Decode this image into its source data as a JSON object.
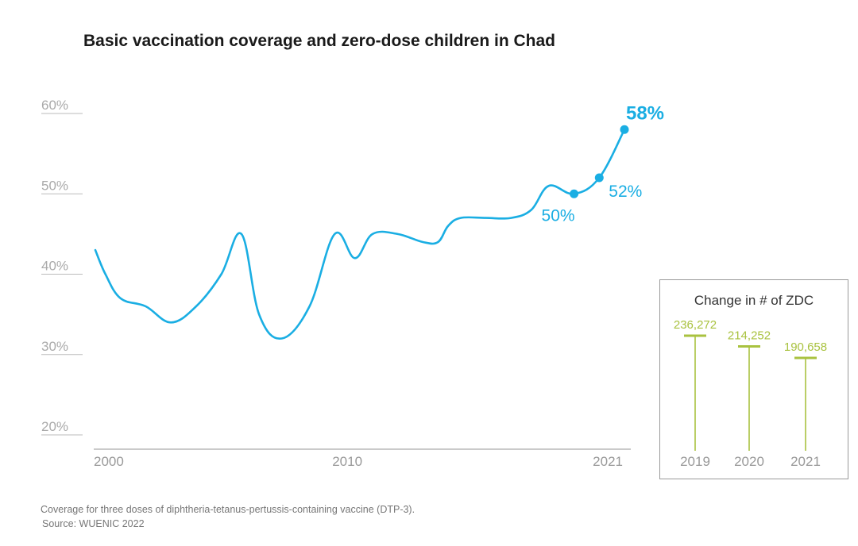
{
  "title": "Basic vaccination coverage and zero-dose children in Chad",
  "footnote": {
    "line1": "Coverage for three doses of diphtheria-tetanus-pertussis-containing vaccine (DTP-3).",
    "line2": "Source: WUENIC 2022"
  },
  "colors": {
    "line": "#1aaee3",
    "zdc": "#a9c23f",
    "axis": "#999999"
  },
  "chart_data": [
    {
      "type": "line",
      "title": "Basic vaccination coverage and zero-dose children in Chad",
      "xlabel": "",
      "ylabel": "",
      "xlim": [
        2000,
        2021
      ],
      "ylim": [
        20,
        60
      ],
      "y_ticks": [
        "60%",
        "50%",
        "40%",
        "30%",
        "20%"
      ],
      "x_ticks": [
        "2000",
        "2010",
        "2021"
      ],
      "grid": false,
      "series": [
        {
          "x": [
            2000,
            2000.4,
            2001,
            2002,
            2003,
            2004,
            2005,
            2005.8,
            2006.5,
            2007.4,
            2008.5,
            2009.5,
            2010.3,
            2011,
            2012,
            2013,
            2013.6,
            2014,
            2014.5,
            2015.5,
            2016.5,
            2017.3,
            2018,
            2019,
            2020,
            2021
          ],
          "y": [
            43,
            40,
            37,
            36,
            34,
            36,
            40,
            45,
            35,
            32,
            36,
            45,
            42,
            45,
            45,
            44,
            44,
            46,
            47,
            47,
            47,
            48,
            51,
            50,
            52,
            58
          ]
        }
      ],
      "annotations": [
        {
          "x": 2019,
          "y": 50,
          "label": "50%"
        },
        {
          "x": 2020,
          "y": 52,
          "label": "52%"
        },
        {
          "x": 2021,
          "y": 58,
          "label": "58%"
        }
      ]
    },
    {
      "type": "bar",
      "title": "Change in # of ZDC",
      "categories": [
        "2019",
        "2020",
        "2021"
      ],
      "values": [
        236272,
        214252,
        190658
      ],
      "labels": [
        "236,272",
        "214,252",
        "190,658"
      ]
    }
  ]
}
